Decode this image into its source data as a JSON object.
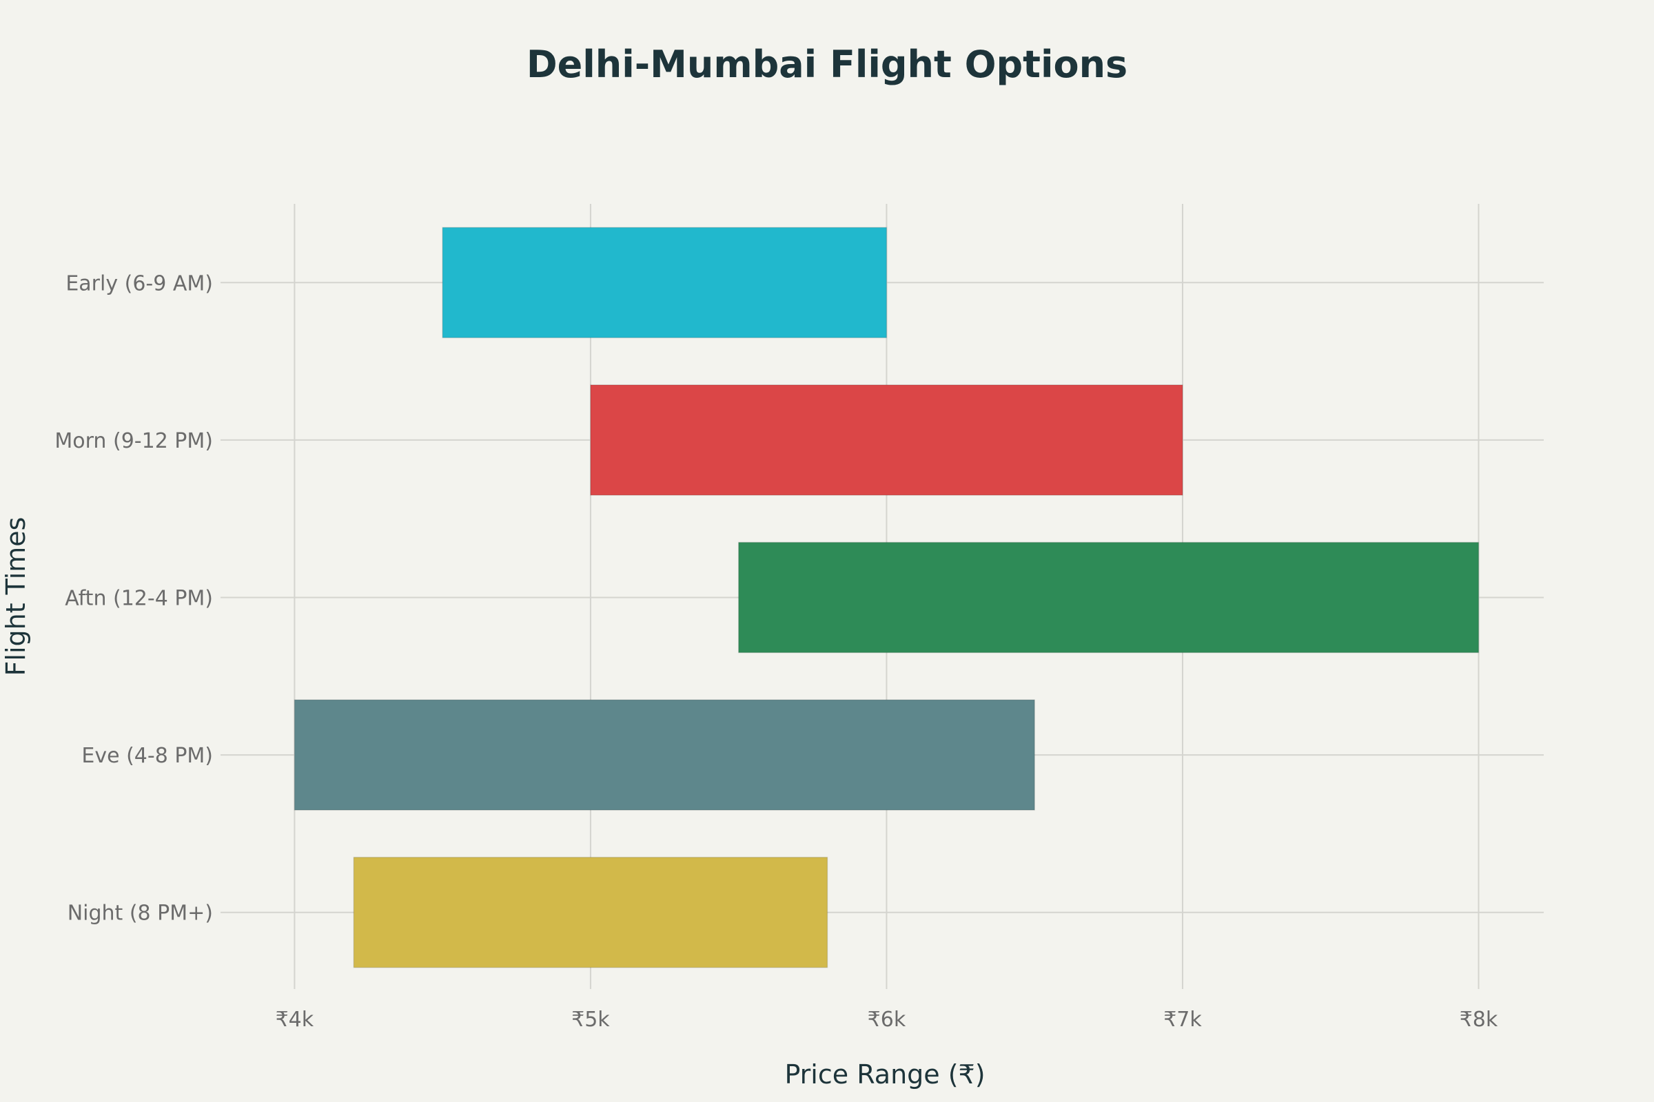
{
  "chart_data": {
    "type": "bar",
    "orientation": "horizontal",
    "title": "Delhi-Mumbai Flight Options",
    "xlabel": "Price Range (₹)",
    "ylabel": "Flight Times",
    "xlim": [
      3750,
      8220
    ],
    "x_ticks": [
      4000,
      5000,
      6000,
      7000,
      8000
    ],
    "x_tick_labels": [
      "₹4k",
      "₹5k",
      "₹6k",
      "₹7k",
      "₹8k"
    ],
    "grid": true,
    "categories": [
      "Early (6-9 AM)",
      "Morn (9-12 PM)",
      "Aftn (12-4 PM)",
      "Eve (4-8 PM)",
      "Night (8 PM+)"
    ],
    "ranges": [
      {
        "min": 4500,
        "max": 6000
      },
      {
        "min": 5000,
        "max": 7000
      },
      {
        "min": 5500,
        "max": 8000
      },
      {
        "min": 4000,
        "max": 6500
      },
      {
        "min": 4200,
        "max": 5800
      }
    ],
    "colors": [
      "#21b8cd",
      "#db4647",
      "#2e8b57",
      "#5e878c",
      "#d2b94a"
    ]
  }
}
